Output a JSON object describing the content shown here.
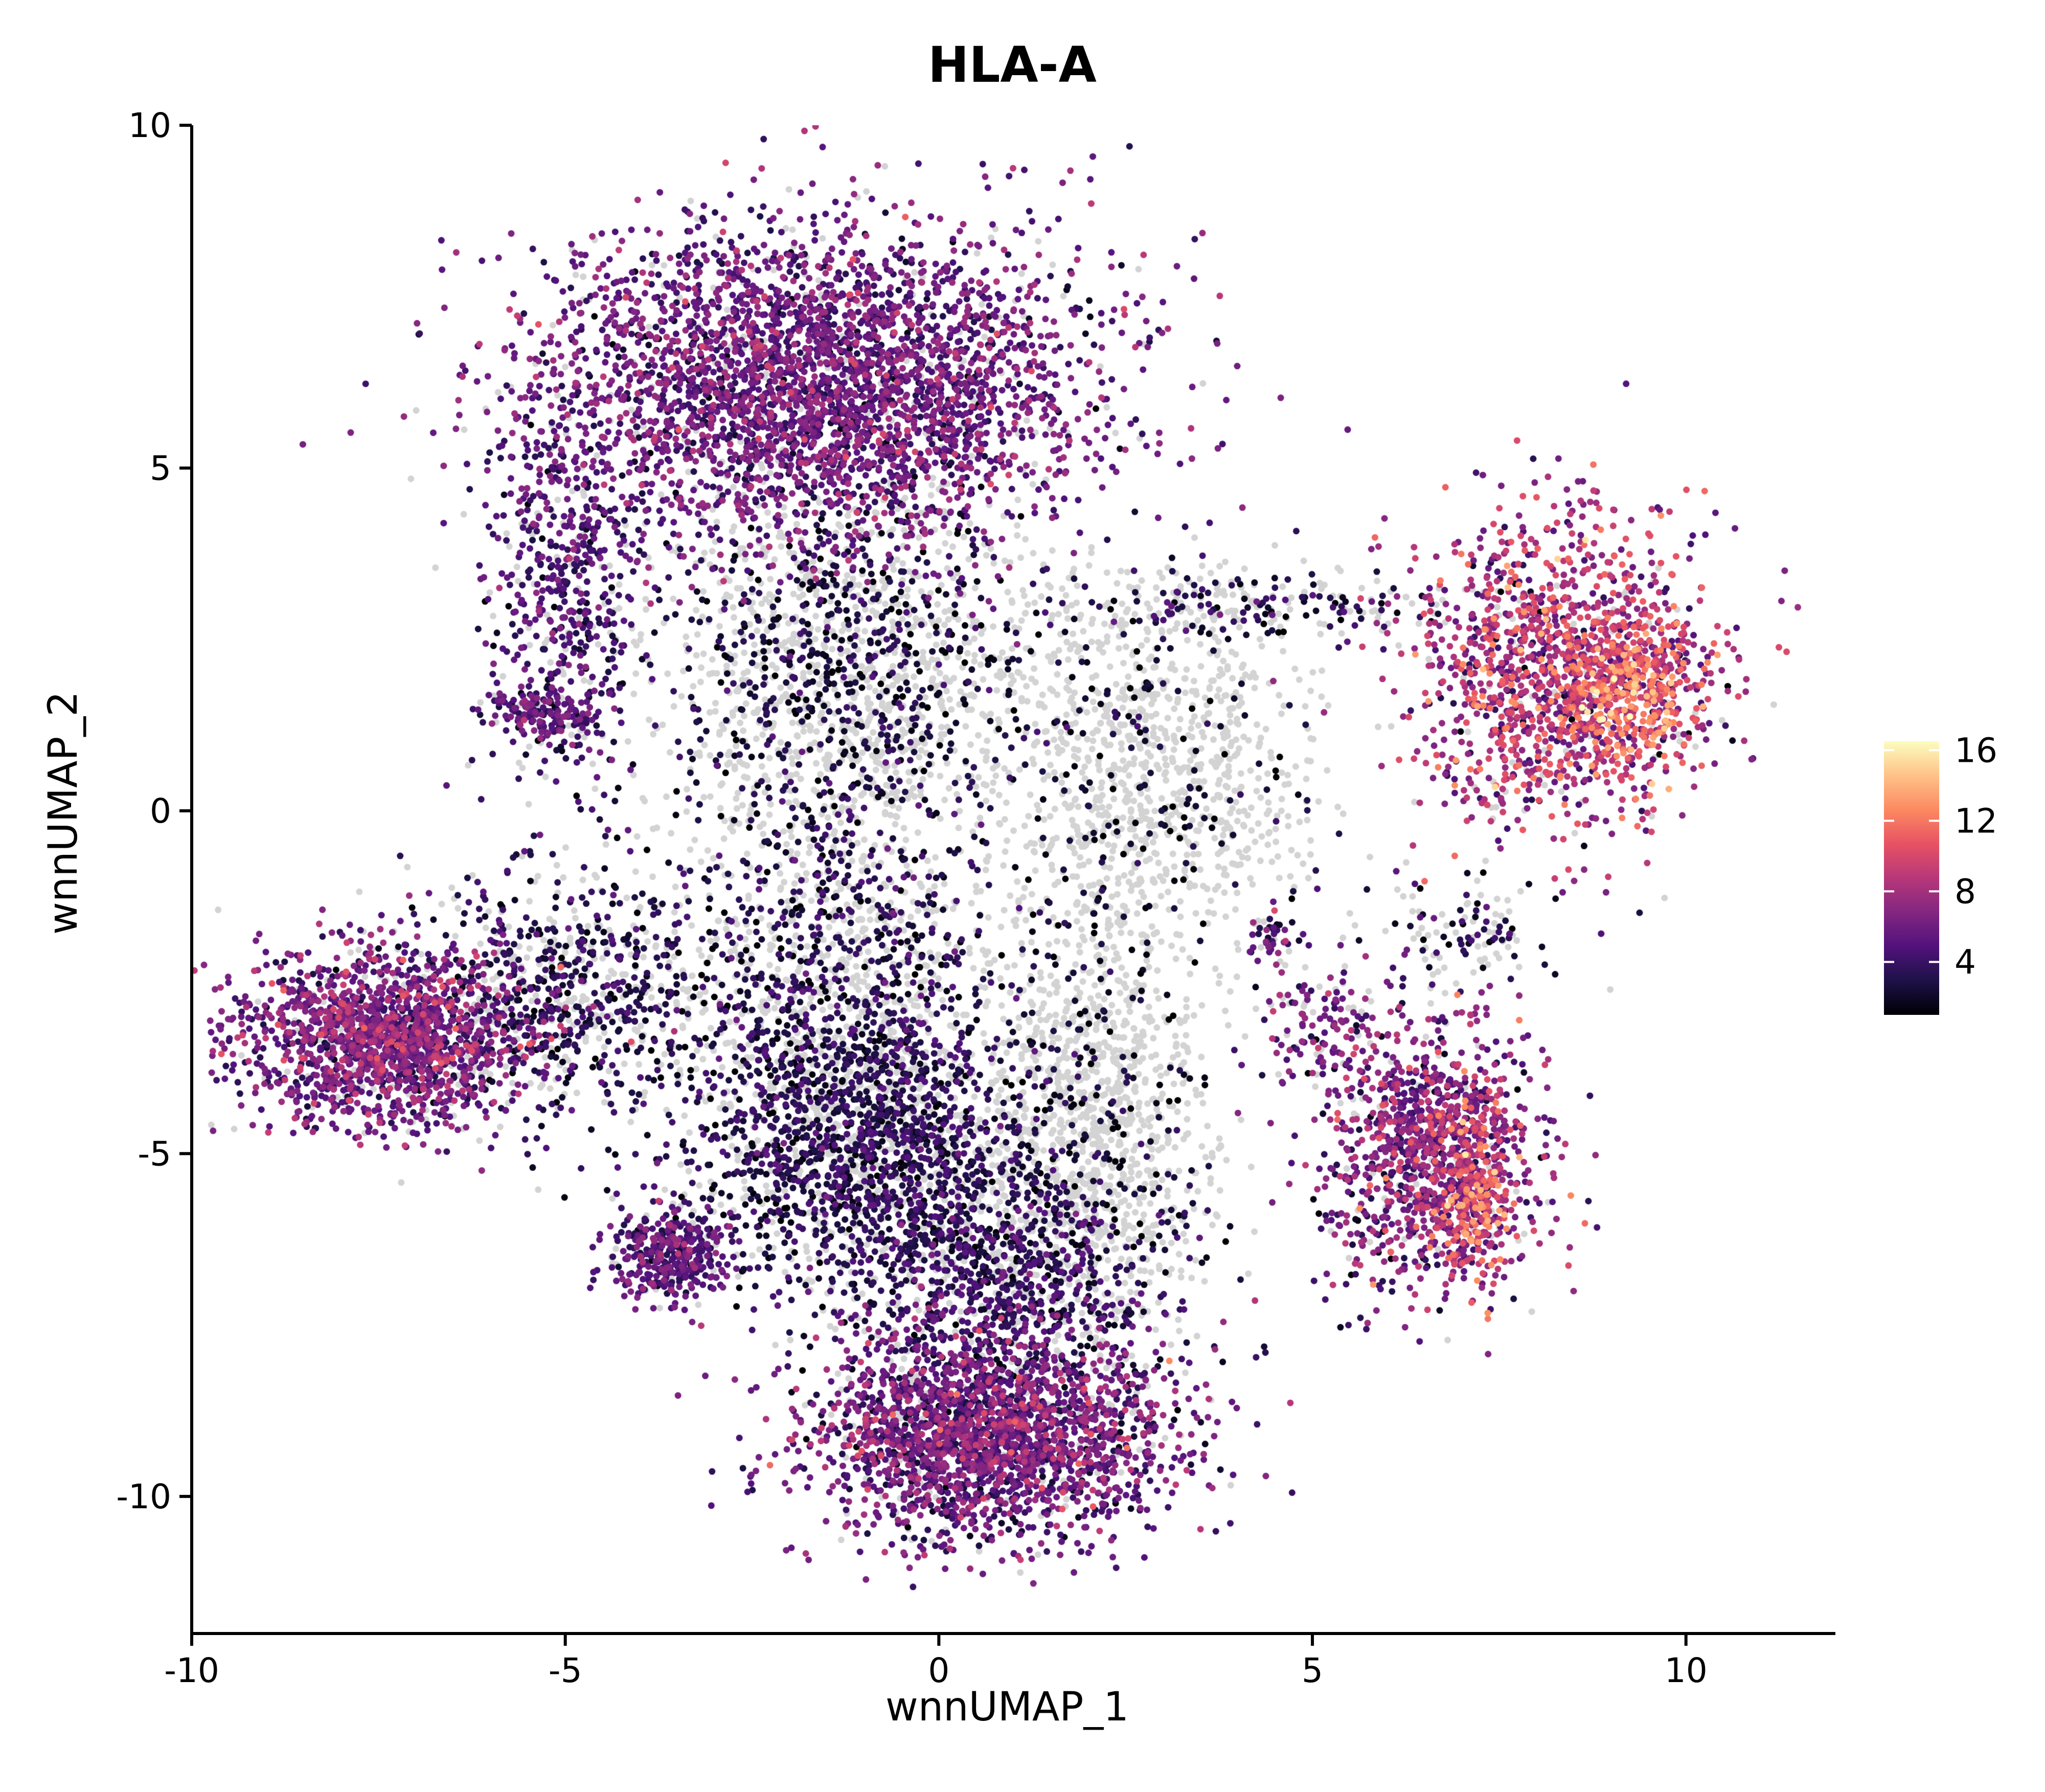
{
  "chart_data": {
    "type": "scatter",
    "title": "HLA-A",
    "xlabel": "wnnUMAP_1",
    "ylabel": "wnnUMAP_2",
    "xlim": [
      -10,
      12
    ],
    "ylim": [
      -12,
      10
    ],
    "x_ticks": [
      -10,
      -5,
      0,
      5,
      10
    ],
    "y_ticks": [
      -10,
      -5,
      0,
      5,
      10
    ],
    "x_tick_labels": [
      "-10",
      "-5",
      "0",
      "5",
      "10"
    ],
    "y_tick_labels": [
      "-10",
      "-5",
      "0",
      "5",
      "10"
    ],
    "grid": false,
    "point_colors": {
      "unexpressed": "#d3d3d3",
      "colormap": "magma",
      "low": "#000004",
      "high": "#fcfdbf"
    },
    "colorbar": {
      "min": 1,
      "max": 16.5,
      "ticks": [
        4,
        8,
        12,
        16
      ],
      "tick_labels": [
        "4",
        "8",
        "12",
        "16"
      ],
      "placement": "right",
      "stops": [
        "#000004",
        "#1d1147",
        "#51127c",
        "#832681",
        "#b73779",
        "#e75263",
        "#fc8961",
        "#fec287",
        "#fcfdbf"
      ]
    },
    "clusters": [
      {
        "name": "",
        "cx": -1.6,
        "cy": 6.2,
        "sx": 2.2,
        "sy": 1.4,
        "n": 3600,
        "mean": 5.5,
        "sd": 1.8,
        "expr_frac": 0.92
      },
      {
        "name": "",
        "cx": -5.0,
        "cy": 3.2,
        "sx": 0.6,
        "sy": 1.6,
        "n": 550,
        "mean": 4.5,
        "sd": 1.5,
        "expr_frac": 0.85
      },
      {
        "name": "",
        "cx": -1.3,
        "cy": 2.0,
        "sx": 1.5,
        "sy": 1.6,
        "n": 1500,
        "mean": 2.5,
        "sd": 1.1,
        "expr_frac": 0.4
      },
      {
        "name": "",
        "cx": -5.3,
        "cy": 1.4,
        "sx": 0.45,
        "sy": 0.25,
        "n": 160,
        "mean": 5.0,
        "sd": 1.4,
        "expr_frac": 0.9
      },
      {
        "name": "",
        "cx": 8.4,
        "cy": 2.0,
        "sx": 1.2,
        "sy": 1.3,
        "n": 1500,
        "mean": 8.0,
        "sd": 2.5,
        "expr_frac": 0.93
      },
      {
        "name": "",
        "cx": 9.3,
        "cy": 1.8,
        "sx": 0.5,
        "sy": 0.6,
        "n": 280,
        "mean": 11.5,
        "sd": 2.0,
        "expr_frac": 1.0
      },
      {
        "name": "",
        "cx": 4.2,
        "cy": 3.0,
        "sx": 1.8,
        "sy": 0.3,
        "n": 260,
        "mean": 3.0,
        "sd": 1.5,
        "expr_frac": 0.45
      },
      {
        "name": "",
        "cx": 2.8,
        "cy": 0.5,
        "sx": 1.3,
        "sy": 1.6,
        "n": 1100,
        "mean": 2.0,
        "sd": 1.0,
        "expr_frac": 0.15
      },
      {
        "name": "",
        "cx": -7.4,
        "cy": -3.3,
        "sx": 1.1,
        "sy": 0.75,
        "n": 1700,
        "mean": 6.0,
        "sd": 2.0,
        "expr_frac": 0.92
      },
      {
        "name": "",
        "cx": -4.9,
        "cy": -2.6,
        "sx": 1.2,
        "sy": 1.0,
        "n": 800,
        "mean": 3.0,
        "sd": 1.3,
        "expr_frac": 0.65
      },
      {
        "name": "",
        "cx": -1.3,
        "cy": -2.6,
        "sx": 1.3,
        "sy": 2.0,
        "n": 1500,
        "mean": 3.0,
        "sd": 1.4,
        "expr_frac": 0.55
      },
      {
        "name": "",
        "cx": -1.0,
        "cy": -5.0,
        "sx": 1.4,
        "sy": 1.1,
        "n": 1400,
        "mean": 3.0,
        "sd": 1.2,
        "expr_frac": 0.75
      },
      {
        "name": "",
        "cx": 2.0,
        "cy": -4.5,
        "sx": 0.9,
        "sy": 1.9,
        "n": 1200,
        "mean": 2.0,
        "sd": 1.0,
        "expr_frac": 0.15
      },
      {
        "name": "",
        "cx": 0.7,
        "cy": -9.1,
        "sx": 1.4,
        "sy": 0.9,
        "n": 2300,
        "mean": 5.5,
        "sd": 2.0,
        "expr_frac": 0.92
      },
      {
        "name": "",
        "cx": 0.8,
        "cy": -6.8,
        "sx": 1.4,
        "sy": 1.1,
        "n": 1000,
        "mean": 3.5,
        "sd": 1.5,
        "expr_frac": 0.75
      },
      {
        "name": "",
        "cx": -3.6,
        "cy": -6.5,
        "sx": 0.45,
        "sy": 0.38,
        "n": 380,
        "mean": 5.0,
        "sd": 1.5,
        "expr_frac": 0.92
      },
      {
        "name": "",
        "cx": 6.6,
        "cy": -5.0,
        "sx": 0.8,
        "sy": 1.1,
        "n": 1200,
        "mean": 6.5,
        "sd": 2.2,
        "expr_frac": 0.92
      },
      {
        "name": "",
        "cx": 7.2,
        "cy": -5.7,
        "sx": 0.3,
        "sy": 0.8,
        "n": 220,
        "mean": 10.5,
        "sd": 2.2,
        "expr_frac": 1.0
      },
      {
        "name": "",
        "cx": 5.2,
        "cy": -3.2,
        "sx": 0.55,
        "sy": 0.6,
        "n": 150,
        "mean": 6.0,
        "sd": 2.0,
        "expr_frac": 0.8
      },
      {
        "name": "",
        "cx": 7.0,
        "cy": -1.8,
        "sx": 0.7,
        "sy": 0.5,
        "n": 120,
        "mean": 3.0,
        "sd": 1.5,
        "expr_frac": 0.6
      },
      {
        "name": "",
        "cx": 4.4,
        "cy": -1.8,
        "sx": 0.2,
        "sy": 0.25,
        "n": 40,
        "mean": 5.5,
        "sd": 2.0,
        "expr_frac": 0.9
      }
    ]
  }
}
